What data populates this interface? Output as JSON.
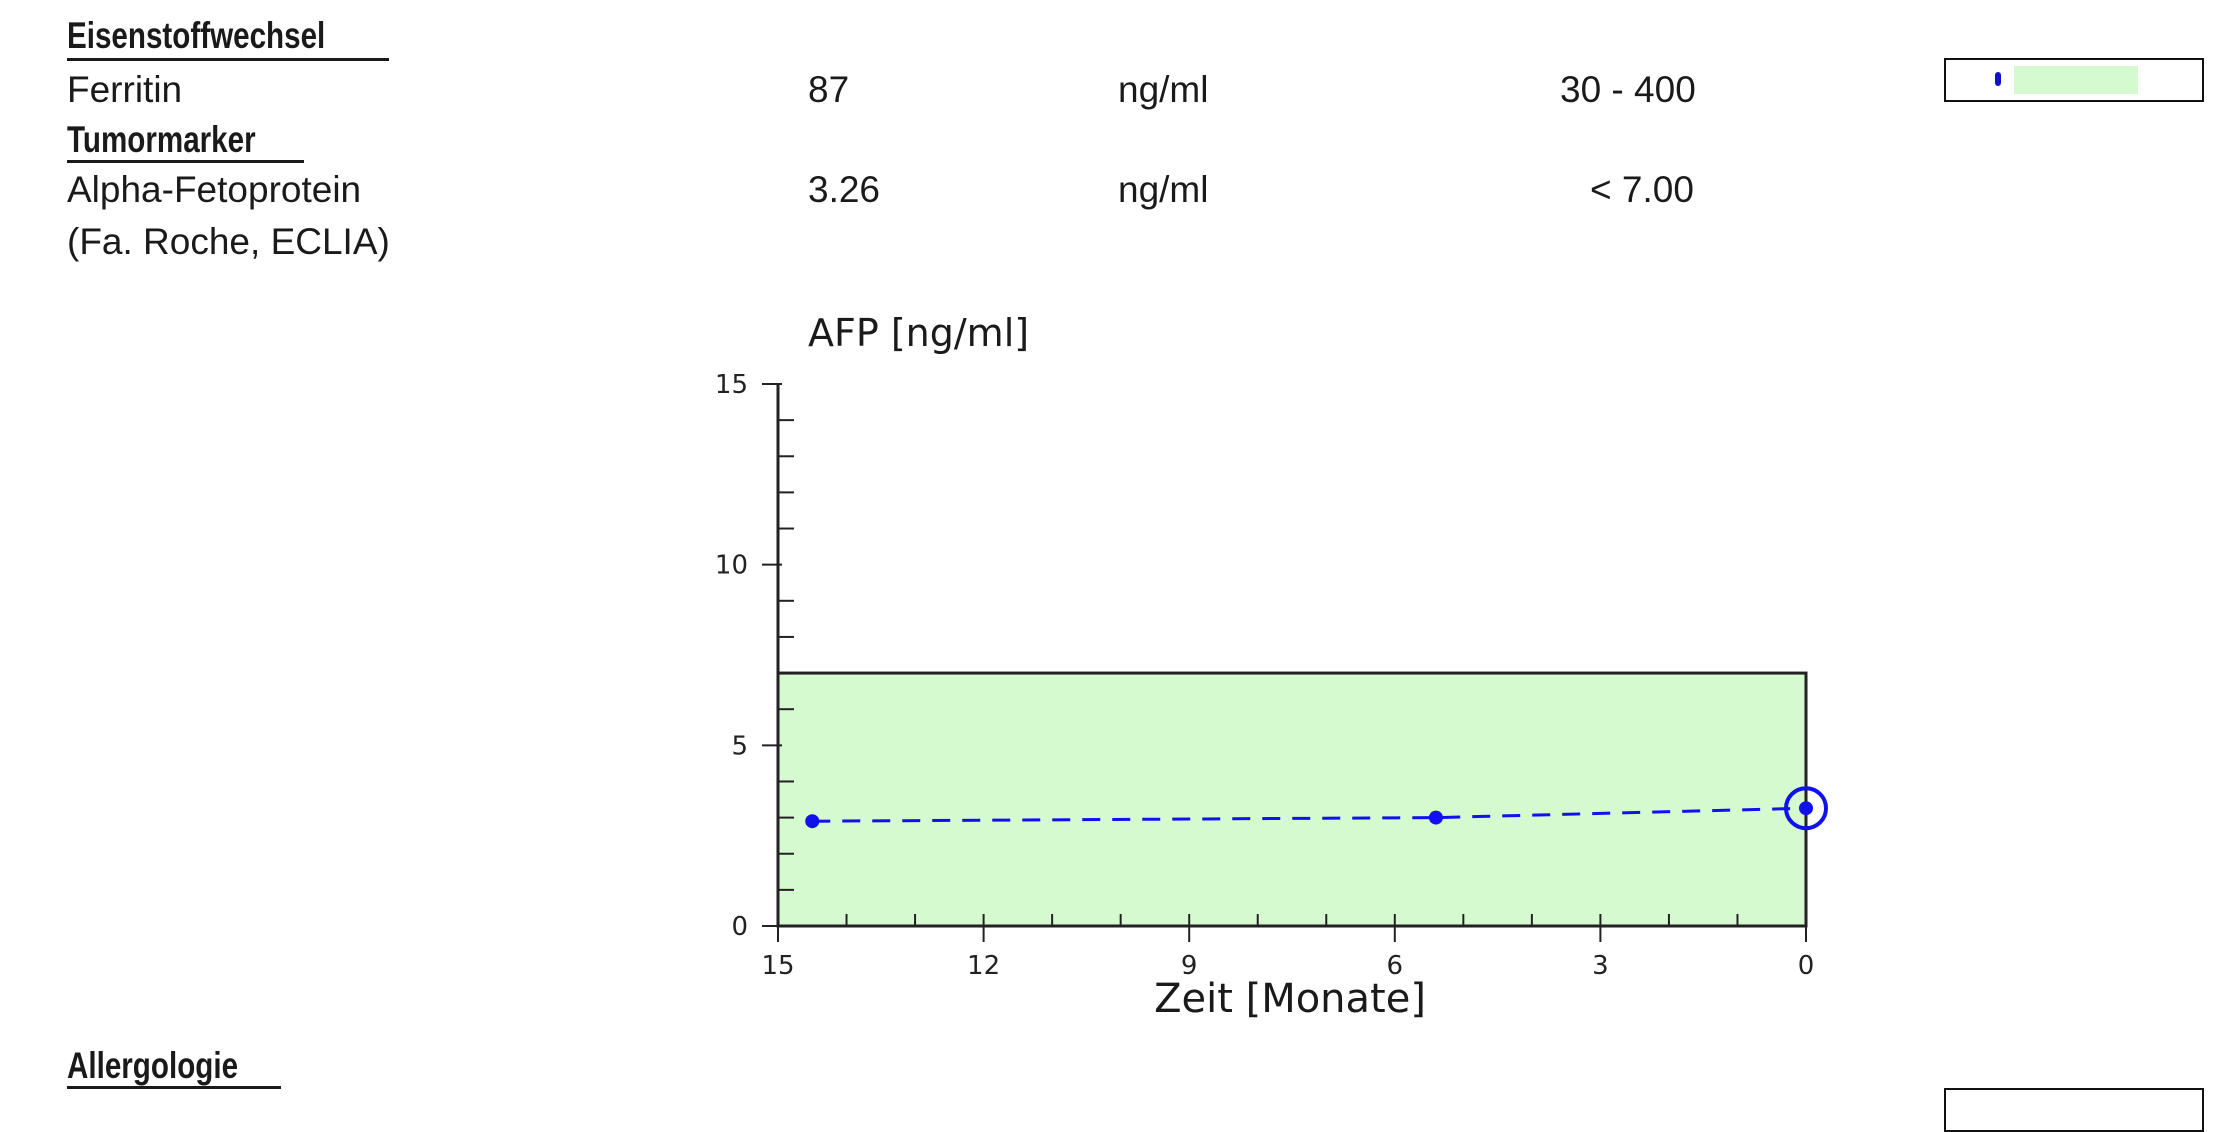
{
  "sections": {
    "iron": "Eisenstoffwechsel",
    "tumor": "Tumormarker",
    "allergy": "Allergologie"
  },
  "rows": {
    "ferritin": {
      "name": "Ferritin",
      "value": "87",
      "unit": "ng/ml",
      "range": "30 - 400",
      "indicator_position": 0.19
    },
    "afp": {
      "name": "Alpha-Fetoprotein",
      "method": "(Fa. Roche, ECLIA)",
      "value": "3.26",
      "unit": "ng/ml",
      "range": "< 7.00"
    }
  },
  "colors": {
    "reference_fill": "#d6fad0",
    "series": "#1111ee",
    "text": "#1a1a1a"
  },
  "chart_data": {
    "type": "line",
    "title": "AFP [ng/ml]",
    "xlabel": "Zeit [Monate]",
    "ylabel": "",
    "xlim": [
      15,
      0
    ],
    "ylim": [
      0,
      15
    ],
    "x_ticks": [
      "15",
      "12",
      "9",
      "6",
      "3",
      "0"
    ],
    "y_ticks": [
      "15",
      "10",
      "5",
      "0"
    ],
    "reference_range": [
      0,
      7.0
    ],
    "series": [
      {
        "x": [
          14.5,
          5.4,
          0
        ],
        "y": [
          2.9,
          3.0,
          3.26
        ],
        "current_index": 2,
        "style": "dashed"
      }
    ],
    "grid": false,
    "legend": "none"
  }
}
